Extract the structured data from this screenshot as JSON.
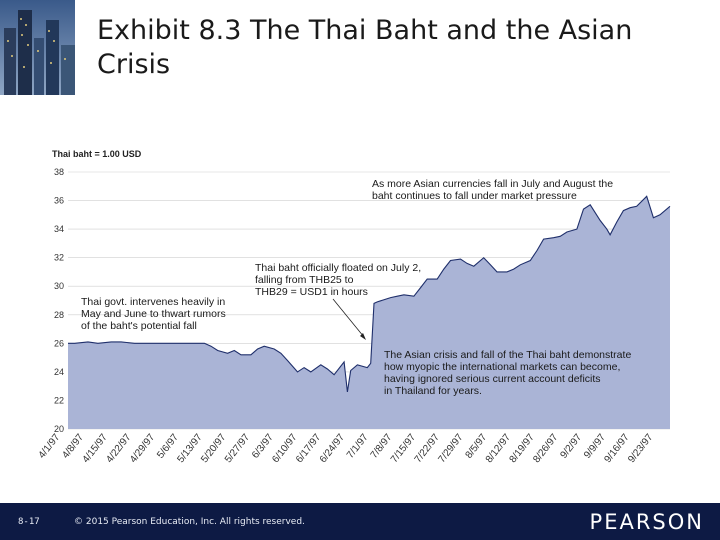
{
  "slide": {
    "title": "Exhibit 8.3  The Thai Baht and the Asian Crisis"
  },
  "footer": {
    "page_number": "8-17",
    "copyright": "© 2015 Pearson Education, Inc. All rights reserved.",
    "logo": "PEARSON"
  },
  "colors": {
    "area_fill": "#aab4d6",
    "area_line": "#1f2f6b",
    "footer_bg": "#0d1a44",
    "grid": "#cfcfcf"
  },
  "chart_data": {
    "type": "area",
    "ylabel": "Thai baht = 1.00 USD",
    "ylim": [
      20,
      38
    ],
    "yticks": [
      20,
      22,
      24,
      26,
      28,
      30,
      32,
      34,
      36,
      38
    ],
    "grid": true,
    "x_tick_labels": [
      "4/1/97",
      "4/8/97",
      "4/15/97",
      "4/22/97",
      "4/29/97",
      "5/6/97",
      "5/13/97",
      "5/20/97",
      "5/27/97",
      "6/3/97",
      "6/10/97",
      "6/17/97",
      "6/24/97",
      "7/1/97",
      "7/8/97",
      "7/15/97",
      "7/22/97",
      "7/29/97",
      "8/5/97",
      "8/12/97",
      "8/19/97",
      "8/26/97",
      "9/2/97",
      "9/9/97",
      "9/16/97",
      "9/23/97"
    ],
    "series": [
      {
        "points": [
          [
            "4/1/97",
            26.0
          ],
          [
            "4/3/97",
            26.0
          ],
          [
            "4/7/97",
            26.1
          ],
          [
            "4/10/97",
            26.0
          ],
          [
            "4/14/97",
            26.1
          ],
          [
            "4/17/97",
            26.1
          ],
          [
            "4/21/97",
            26.0
          ],
          [
            "4/24/97",
            26.0
          ],
          [
            "4/28/97",
            26.0
          ],
          [
            "5/1/97",
            26.0
          ],
          [
            "5/5/97",
            26.0
          ],
          [
            "5/8/97",
            26.0
          ],
          [
            "5/12/97",
            26.0
          ],
          [
            "5/14/97",
            25.8
          ],
          [
            "5/16/97",
            25.5
          ],
          [
            "5/19/97",
            25.3
          ],
          [
            "5/21/97",
            25.5
          ],
          [
            "5/23/97",
            25.2
          ],
          [
            "5/26/97",
            25.2
          ],
          [
            "5/28/97",
            25.6
          ],
          [
            "5/30/97",
            25.8
          ],
          [
            "6/2/97",
            25.6
          ],
          [
            "6/4/97",
            25.3
          ],
          [
            "6/6/97",
            24.8
          ],
          [
            "6/9/97",
            24.0
          ],
          [
            "6/11/97",
            24.3
          ],
          [
            "6/13/97",
            24.0
          ],
          [
            "6/16/97",
            24.5
          ],
          [
            "6/18/97",
            24.2
          ],
          [
            "6/20/97",
            23.8
          ],
          [
            "6/23/97",
            24.7
          ],
          [
            "6/24/97",
            22.6
          ],
          [
            "6/25/97",
            24.1
          ],
          [
            "6/27/97",
            24.5
          ],
          [
            "6/30/97",
            24.3
          ],
          [
            "7/1/97",
            24.6
          ],
          [
            "7/2/97",
            28.8
          ],
          [
            "7/3/97",
            28.9
          ],
          [
            "7/7/97",
            29.2
          ],
          [
            "7/9/97",
            29.3
          ],
          [
            "7/11/97",
            29.4
          ],
          [
            "7/14/97",
            29.3
          ],
          [
            "7/16/97",
            29.9
          ],
          [
            "7/18/97",
            30.5
          ],
          [
            "7/21/97",
            30.5
          ],
          [
            "7/23/97",
            31.2
          ],
          [
            "7/25/97",
            31.8
          ],
          [
            "7/28/97",
            31.9
          ],
          [
            "7/30/97",
            31.6
          ],
          [
            "8/1/97",
            31.4
          ],
          [
            "8/4/97",
            32.0
          ],
          [
            "8/6/97",
            31.5
          ],
          [
            "8/8/97",
            31.0
          ],
          [
            "8/11/97",
            31.0
          ],
          [
            "8/13/97",
            31.2
          ],
          [
            "8/15/97",
            31.5
          ],
          [
            "8/18/97",
            31.8
          ],
          [
            "8/20/97",
            32.5
          ],
          [
            "8/22/97",
            33.3
          ],
          [
            "8/25/97",
            33.4
          ],
          [
            "8/27/97",
            33.5
          ],
          [
            "8/29/97",
            33.8
          ],
          [
            "9/1/97",
            34.0
          ],
          [
            "9/3/97",
            35.4
          ],
          [
            "9/5/97",
            35.7
          ],
          [
            "9/8/97",
            34.6
          ],
          [
            "9/10/97",
            34.0
          ],
          [
            "9/11/97",
            33.6
          ],
          [
            "9/13/97",
            34.5
          ],
          [
            "9/15/97",
            35.3
          ],
          [
            "9/17/97",
            35.5
          ],
          [
            "9/19/97",
            35.6
          ],
          [
            "9/22/97",
            36.3
          ],
          [
            "9/24/97",
            34.8
          ],
          [
            "9/26/97",
            35.0
          ],
          [
            "9/29/97",
            35.6
          ]
        ]
      }
    ],
    "annotations": [
      {
        "text": "As more Asian currencies fall in July and August the baht continues to fall under market pressure",
        "lines": [
          "As more Asian currencies fall in July and August the",
          "baht continues to fall under market pressure"
        ]
      },
      {
        "text": "Thai baht officially floated on July 2, falling from THB25 to THB29 = USD1 in hours",
        "lines": [
          "Thai baht officially floated on July 2,",
          "falling from THB25 to",
          "THB29 = USD1 in hours"
        ]
      },
      {
        "text": "Thai govt. intervenes heavily in May and June to thwart rumors of the baht's potential fall",
        "lines": [
          "Thai govt. intervenes heavily in",
          "May and June to thwart rumors",
          "of the baht's potential fall"
        ]
      },
      {
        "text": "The Asian crisis and fall of the Thai baht demonstrate how myopic the international markets can become, having ignored serious current account deficits in Thailand for years.",
        "lines": [
          "The Asian crisis and fall of the Thai baht demonstrate",
          "how myopic the international markets can become,",
          "having ignored serious current account deficits",
          "in Thailand for years."
        ]
      }
    ]
  }
}
